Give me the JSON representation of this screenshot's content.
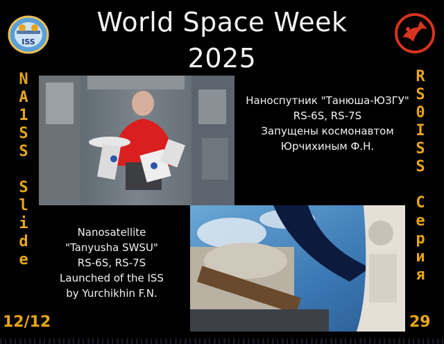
{
  "title_line1": "World Space Week",
  "title_line2": "2025",
  "logo_left": {
    "text": "ISS",
    "icon": "aria-iss-logo"
  },
  "logo_right": {
    "icon": "rs0iss-logo"
  },
  "left_column": [
    "N",
    "A",
    "1",
    "S",
    "S",
    " ",
    "S",
    "l",
    "i",
    "d",
    "e"
  ],
  "right_column": [
    "R",
    "S",
    "0",
    "I",
    "S",
    "S",
    " ",
    "С",
    "е",
    "р",
    "и",
    "я"
  ],
  "slide_number": "12/12",
  "series_number": "29",
  "caption_ru": [
    "Наноспутник \"Танюша-ЮЗГУ\"",
    "RS-6S, RS-7S",
    "Запущены космонавтом",
    "Юрчихиным Ф.Н."
  ],
  "caption_en": [
    "Nanosatellite",
    "\"Tanyusha SWSU\"",
    "RS-6S, RS-7S",
    "Launched of the ISS",
    "by Yurchikhin F.N."
  ],
  "colors": {
    "accent": "#e8a619",
    "background": "#000000"
  }
}
